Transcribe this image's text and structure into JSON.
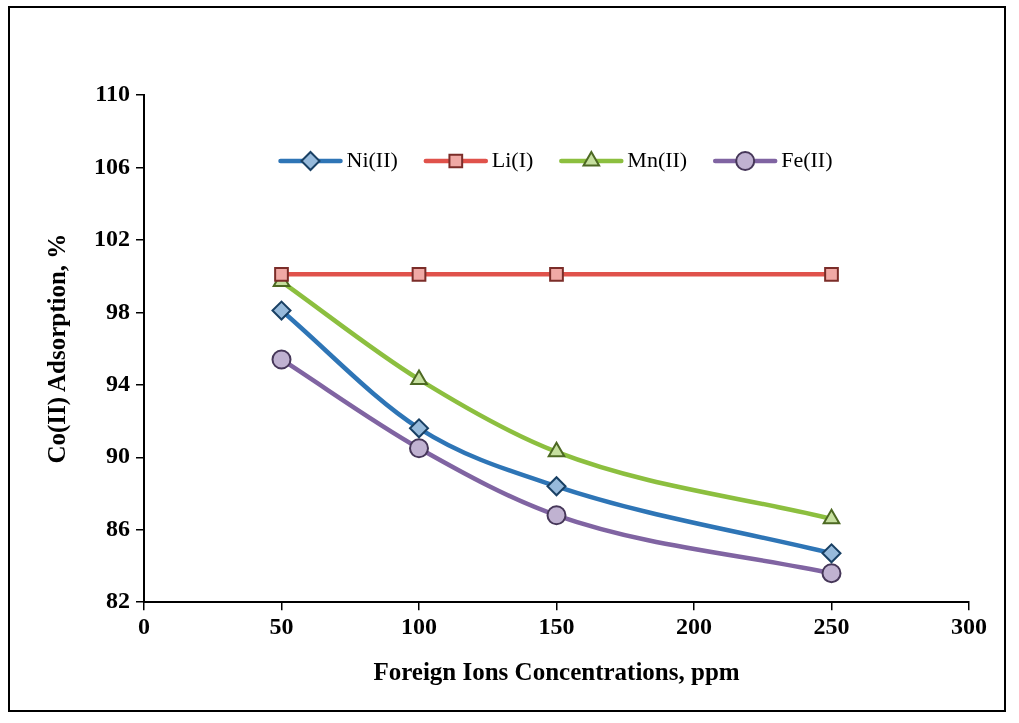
{
  "chart_data": {
    "type": "line",
    "xlabel": "Foreign Ions Concentrations, ppm",
    "ylabel": "Co(II) Adsorption, %",
    "x": [
      50,
      100,
      150,
      250
    ],
    "series": [
      {
        "name": "Ni(II)",
        "color": "#2e75b6",
        "marker": "diamond",
        "values": [
          98.1,
          91.6,
          88.4,
          84.7
        ]
      },
      {
        "name": "Li(I)",
        "color": "#e0524b",
        "marker": "square",
        "values": [
          100.1,
          100.1,
          100.1,
          100.1
        ]
      },
      {
        "name": "Mn(II)",
        "color": "#8cbf3f",
        "marker": "triangle",
        "values": [
          99.7,
          94.3,
          90.3,
          86.6
        ]
      },
      {
        "name": "Fe(II)",
        "color": "#8064a2",
        "marker": "circle",
        "values": [
          95.4,
          90.5,
          86.8,
          83.6
        ]
      }
    ],
    "xlim": [
      0,
      300
    ],
    "xticks": [
      0,
      50,
      100,
      150,
      200,
      250,
      300
    ],
    "ylim": [
      82,
      110
    ],
    "yticks": [
      82,
      86,
      90,
      94,
      98,
      102,
      106,
      110
    ],
    "grid": false,
    "legend": "top",
    "line_style": "solid"
  }
}
